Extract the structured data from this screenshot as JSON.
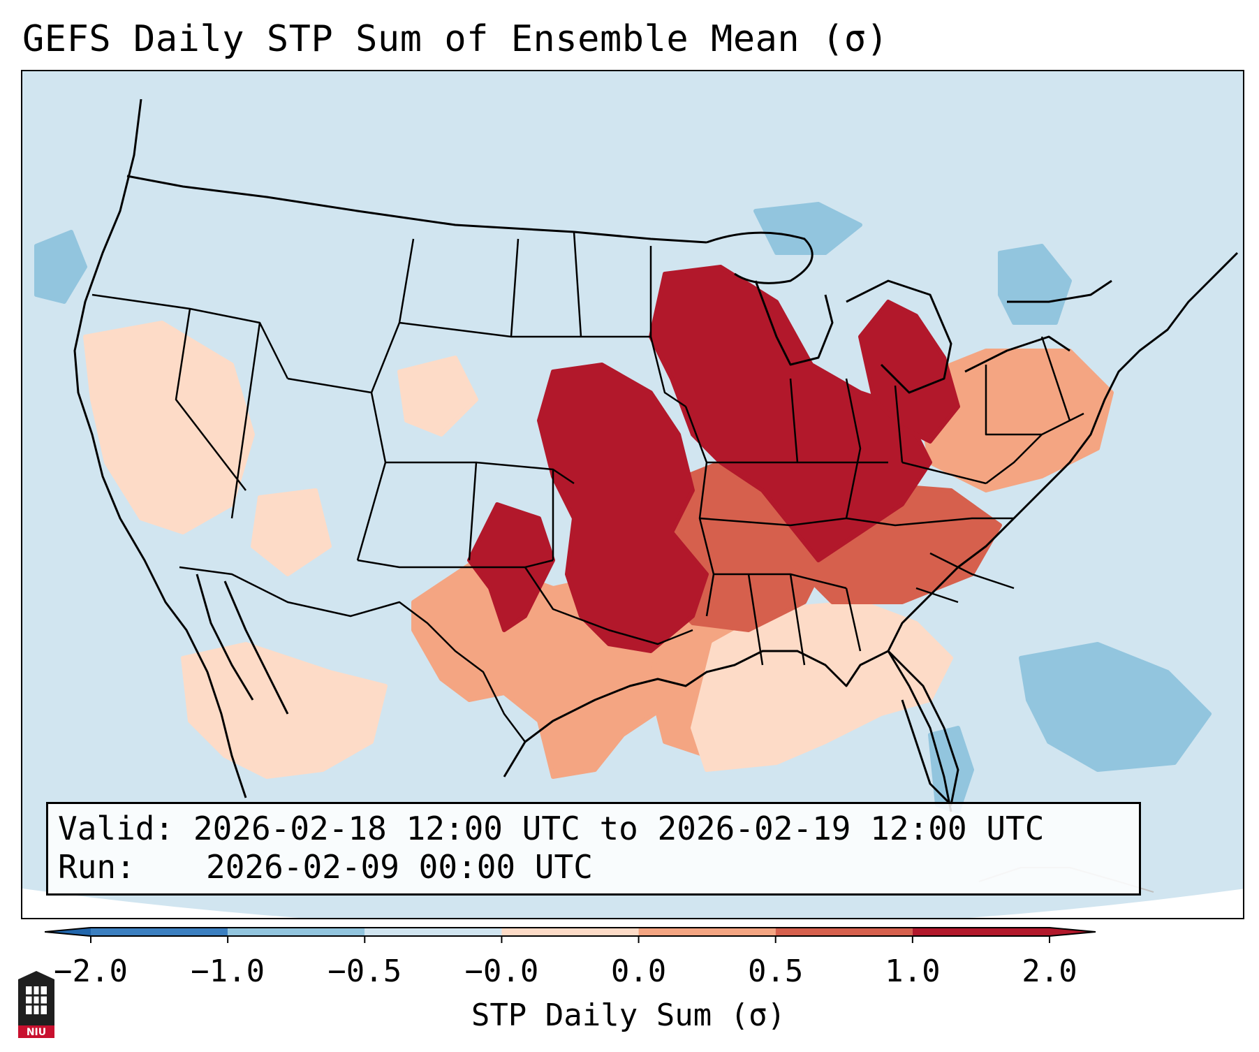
{
  "title": "GEFS Daily STP Sum of Ensemble Mean (σ)",
  "info": {
    "valid_label": "Valid:",
    "valid_value": "2026-02-18 12:00 UTC to 2026-02-19 12:00 UTC",
    "run_label": "Run:",
    "run_value": "2026-02-09 00:00 UTC"
  },
  "colorbar": {
    "label": "STP Daily Sum (σ)",
    "ticks": [
      "−2.0",
      "−1.0",
      "−0.5",
      "−0.0",
      "0.0",
      "0.5",
      "1.0",
      "2.0"
    ],
    "colors": [
      "#3b7fc0",
      "#92c5de",
      "#d1e5f0",
      "#f7f7f7",
      "#fddbc7",
      "#f4a582",
      "#d6604d",
      "#b2182b"
    ],
    "extend_min_color": "#2166ac",
    "extend_max_color": "#b2182b"
  },
  "logo": {
    "text": "NIU",
    "color": "#c8102e"
  },
  "map": {
    "background_color": "#d1e5f0",
    "outside_color": "#ffffff",
    "regions": [
      {
        "name": "Central Plains core",
        "category": 7
      },
      {
        "name": "Upper Midwest and Ohio Valley core",
        "category": 7
      },
      {
        "name": "Michigan and Great Lakes",
        "category": 7
      },
      {
        "name": "Red River and Oklahoma",
        "category": 7
      },
      {
        "name": "Ozarks and Arkansas",
        "category": 6
      },
      {
        "name": "Tennessee and Kentucky",
        "category": 6
      },
      {
        "name": "Central Texas",
        "category": 5
      },
      {
        "name": "Lower Mississippi Valley",
        "category": 5
      },
      {
        "name": "Ohio and Pennsylvania",
        "category": 5
      },
      {
        "name": "Gulf Coast and Deep South",
        "category": 4
      },
      {
        "name": "Northern Mexico",
        "category": 4
      },
      {
        "name": "Western Great Basin scatter",
        "category": 4
      },
      {
        "name": "Atlantic offshore",
        "category": 1
      },
      {
        "name": "Gulf of Mexico",
        "category": 1
      },
      {
        "name": "Northeast and Quebec",
        "category": 1
      },
      {
        "name": "Lake Superior",
        "category": 1
      },
      {
        "name": "Pacific coast",
        "category": 1
      }
    ]
  }
}
